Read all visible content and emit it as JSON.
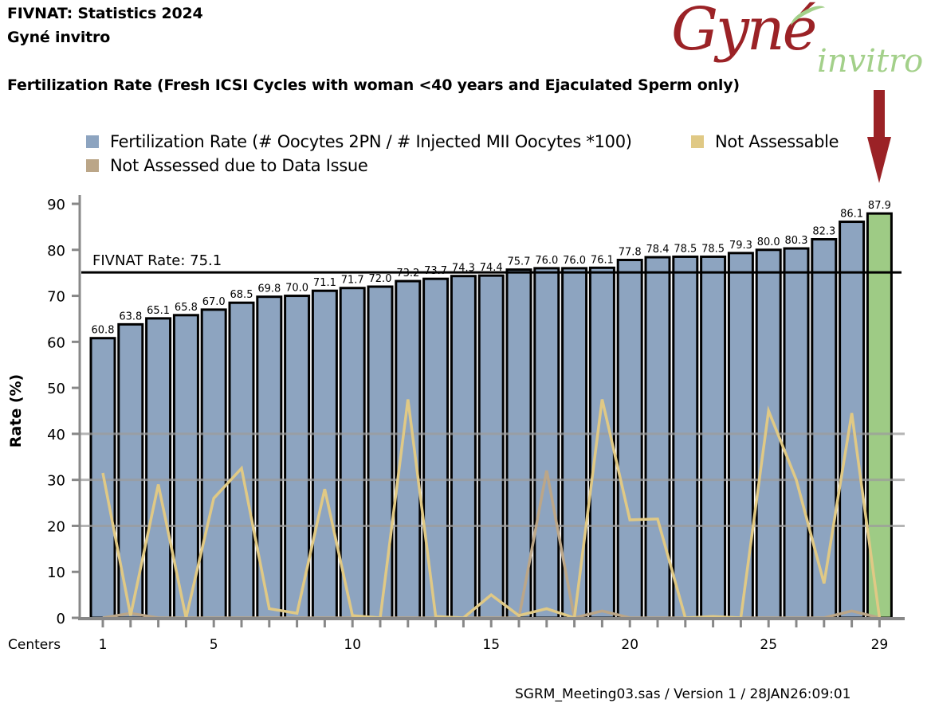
{
  "header": {
    "title_line1": "FIVNAT: Statistics 2024",
    "title_line2": "Gyné invitro",
    "chart_title": "Fertilization Rate (Fresh ICSI Cycles with woman <40 years and Ejaculated Sperm only)"
  },
  "logo": {
    "main": "Gyné",
    "sub": "invitro",
    "arrow_icon": "down-arrow-icon"
  },
  "colors": {
    "bar": "#8da4c0",
    "highlight_bar": "#9ecb85",
    "not_assessable": "#e0c985",
    "data_issue": "#bba688",
    "reference_line": "#000000",
    "gridline": "#9c9c9c",
    "logo_red": "#9b2226",
    "logo_green": "#a3d08a",
    "arrow": "#9b2226"
  },
  "legend": {
    "items": [
      {
        "label": "Fertilization Rate (# Oocytes 2PN / # Injected MII Oocytes *100)",
        "color": "#8da4c0"
      },
      {
        "label": "Not Assessable",
        "color": "#e0c985"
      },
      {
        "label": "Not Assessed due to Data Issue",
        "color": "#bba688"
      }
    ]
  },
  "footer": "SGRM_Meeting03.sas / Version 1 / 28JAN26:09:01",
  "chart_data": {
    "type": "bar",
    "title": "Fertilization Rate (Fresh ICSI Cycles with woman <40 years and Ejaculated Sperm only)",
    "xlabel": "Centers",
    "ylabel": "Rate (%)",
    "ylim": [
      0,
      90
    ],
    "yticks": [
      0,
      10,
      20,
      30,
      40,
      50,
      60,
      70,
      80,
      90
    ],
    "xtick_labels": [
      "1",
      "5",
      "10",
      "15",
      "20",
      "25",
      "29"
    ],
    "xtick_label_positions": [
      1,
      5,
      10,
      15,
      20,
      25,
      29
    ],
    "grid_values": [
      20,
      30,
      40
    ],
    "categories": [
      1,
      2,
      3,
      4,
      5,
      6,
      7,
      8,
      9,
      10,
      11,
      12,
      13,
      14,
      15,
      16,
      17,
      18,
      19,
      20,
      21,
      22,
      23,
      24,
      25,
      26,
      27,
      28,
      29
    ],
    "highlight_index": 28,
    "reference_line": {
      "label": "FIVNAT Rate: 75.1",
      "value": 75.1
    },
    "series": [
      {
        "name": "Fertilization Rate (# Oocytes 2PN / # Injected MII Oocytes *100)",
        "kind": "bar",
        "values": [
          60.8,
          63.8,
          65.1,
          65.8,
          67.0,
          68.5,
          69.8,
          70.0,
          71.1,
          71.7,
          72.0,
          73.2,
          73.7,
          74.3,
          74.4,
          75.7,
          76.0,
          76.0,
          76.1,
          77.8,
          78.4,
          78.5,
          78.5,
          79.3,
          80.0,
          80.3,
          82.3,
          86.1,
          87.9
        ],
        "labels": [
          "60.8",
          "63.8",
          "65.1",
          "65.8",
          "67.0",
          "68.5",
          "69.8",
          "70.0",
          "71.1",
          "71.7",
          "72.0",
          "73.2",
          "73.7",
          "74.3",
          "74.4",
          "75.7",
          "76.0",
          "76.0",
          "76.1",
          "77.8",
          "78.4",
          "78.5",
          "78.5",
          "79.3",
          "80.0",
          "80.3",
          "82.3",
          "86.1",
          "87.9"
        ]
      },
      {
        "name": "Not Assessable",
        "kind": "line",
        "values": [
          31.5,
          0.5,
          29,
          0,
          26,
          32.5,
          2,
          1,
          28,
          0.5,
          0,
          47.5,
          0.3,
          0,
          5,
          0.5,
          2,
          0,
          47.5,
          21.3,
          21.5,
          0,
          0.3,
          0,
          45,
          30,
          7.5,
          44.5,
          0
        ]
      },
      {
        "name": "Not Assessed due to Data Issue",
        "kind": "line",
        "values": [
          0,
          1,
          0,
          0,
          0,
          0,
          0,
          0,
          0,
          0,
          0,
          0,
          0,
          0,
          0,
          0,
          32,
          0,
          1.5,
          0,
          0,
          0,
          0,
          0,
          0,
          0,
          0,
          1.5,
          0
        ]
      }
    ],
    "legend_position": "top"
  }
}
